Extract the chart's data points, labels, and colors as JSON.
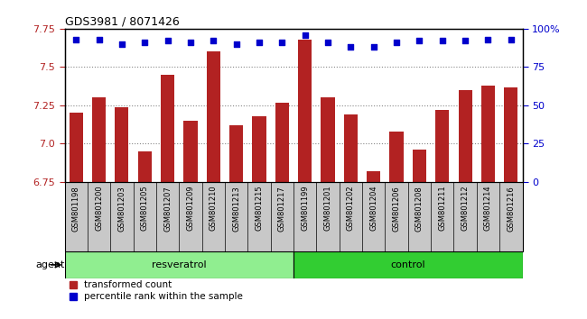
{
  "title": "GDS3981 / 8071426",
  "categories": [
    "GSM801198",
    "GSM801200",
    "GSM801203",
    "GSM801205",
    "GSM801207",
    "GSM801209",
    "GSM801210",
    "GSM801213",
    "GSM801215",
    "GSM801217",
    "GSM801199",
    "GSM801201",
    "GSM801202",
    "GSM801204",
    "GSM801206",
    "GSM801208",
    "GSM801211",
    "GSM801212",
    "GSM801214",
    "GSM801216"
  ],
  "bar_values": [
    7.2,
    7.3,
    7.24,
    6.95,
    7.45,
    7.15,
    7.6,
    7.12,
    7.18,
    7.27,
    7.68,
    7.3,
    7.19,
    6.82,
    7.08,
    6.96,
    7.22,
    7.35,
    7.38,
    7.37
  ],
  "percentile_values": [
    93,
    93,
    90,
    91,
    92,
    91,
    92,
    90,
    91,
    91,
    96,
    91,
    88,
    88,
    91,
    92,
    92,
    92,
    93,
    93
  ],
  "groups": [
    "resveratrol",
    "resveratrol",
    "resveratrol",
    "resveratrol",
    "resveratrol",
    "resveratrol",
    "resveratrol",
    "resveratrol",
    "resveratrol",
    "resveratrol",
    "control",
    "control",
    "control",
    "control",
    "control",
    "control",
    "control",
    "control",
    "control",
    "control"
  ],
  "ylim_left": [
    6.75,
    7.75
  ],
  "ylim_right": [
    0,
    100
  ],
  "yticks_left": [
    6.75,
    7.0,
    7.25,
    7.5,
    7.75
  ],
  "yticks_right": [
    0,
    25,
    50,
    75,
    100
  ],
  "ytick_labels_right": [
    "0",
    "25",
    "50",
    "75",
    "100%"
  ],
  "bar_color": "#b22222",
  "dot_color": "#0000cc",
  "resveratrol_color": "#90ee90",
  "control_color": "#32cd32",
  "group_labels": [
    "resveratrol",
    "control"
  ],
  "legend_bar": "transformed count",
  "legend_dot": "percentile rank within the sample",
  "grid_color": "#888888",
  "bar_width": 0.6,
  "xtick_bg_color": "#c8c8c8",
  "plot_bg_color": "#ffffff",
  "spine_color": "#000000"
}
